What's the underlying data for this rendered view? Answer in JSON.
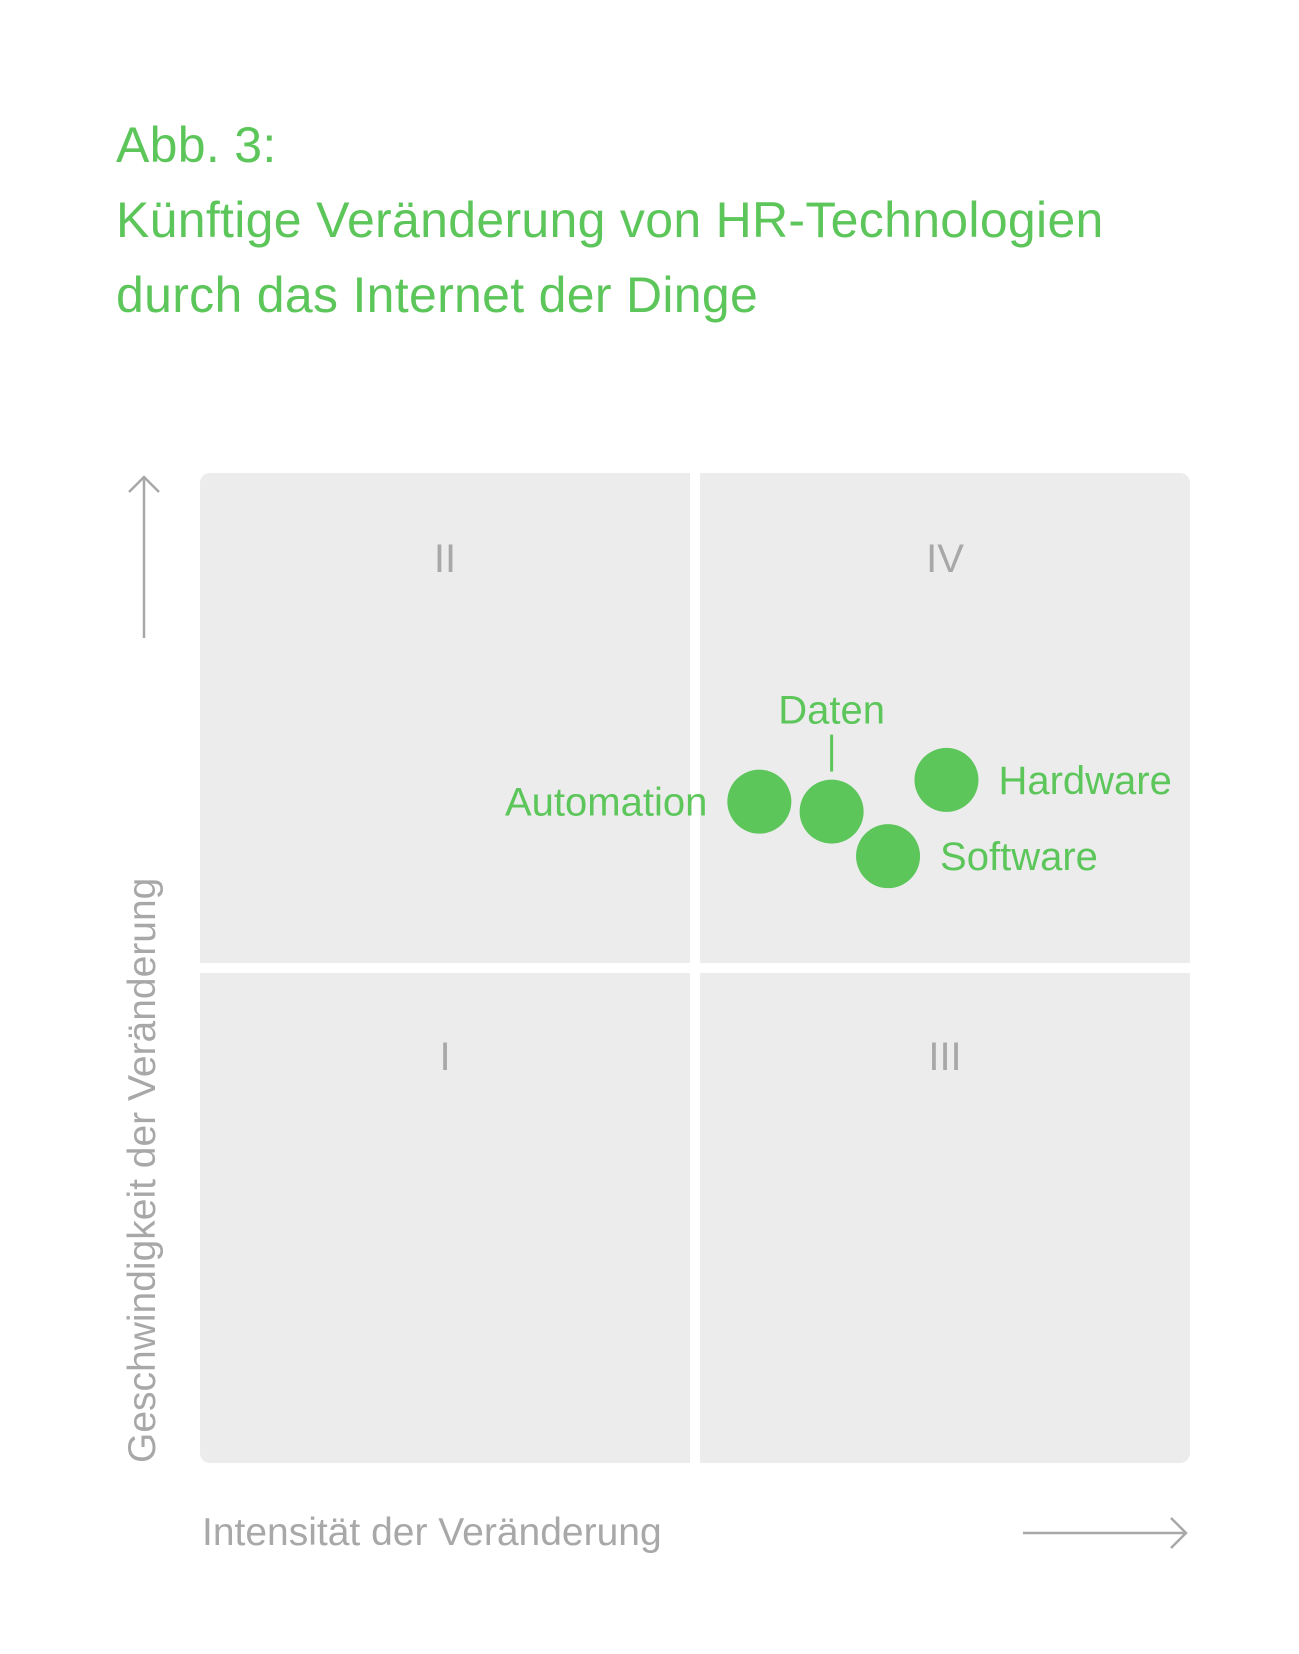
{
  "figure_label": "Abb. 3:",
  "title_line1": "Künftige Veränderung von HR-Technologien",
  "title_line2": "durch das Internet der Dinge",
  "chart_data": {
    "type": "scatter",
    "title": "Künftige Veränderung von HR-Technologien durch das Internet der Dinge",
    "xlabel": "Intensität der Veränderung",
    "ylabel": "Geschwindigkeit der Veränderung",
    "xlim": [
      0,
      100
    ],
    "ylim": [
      0,
      100
    ],
    "quadrants": [
      {
        "id": "I",
        "label": "I",
        "position": "bottom-left"
      },
      {
        "id": "II",
        "label": "II",
        "position": "top-left"
      },
      {
        "id": "III",
        "label": "III",
        "position": "bottom-right"
      },
      {
        "id": "IV",
        "label": "IV",
        "position": "top-right"
      }
    ],
    "points": [
      {
        "name": "Automation",
        "x": 56.5,
        "y": 66.8,
        "label_side": "left"
      },
      {
        "name": "Daten",
        "x": 63.8,
        "y": 65.8,
        "label_side": "top"
      },
      {
        "name": "Software",
        "x": 69.5,
        "y": 61.3,
        "label_side": "right"
      },
      {
        "name": "Hardware",
        "x": 75.4,
        "y": 69.0,
        "label_side": "right"
      }
    ],
    "colors": {
      "point": "#5cc65a",
      "panel": "#ececec",
      "axis_text": "#a8a8a8",
      "title": "#5cc65a"
    }
  }
}
